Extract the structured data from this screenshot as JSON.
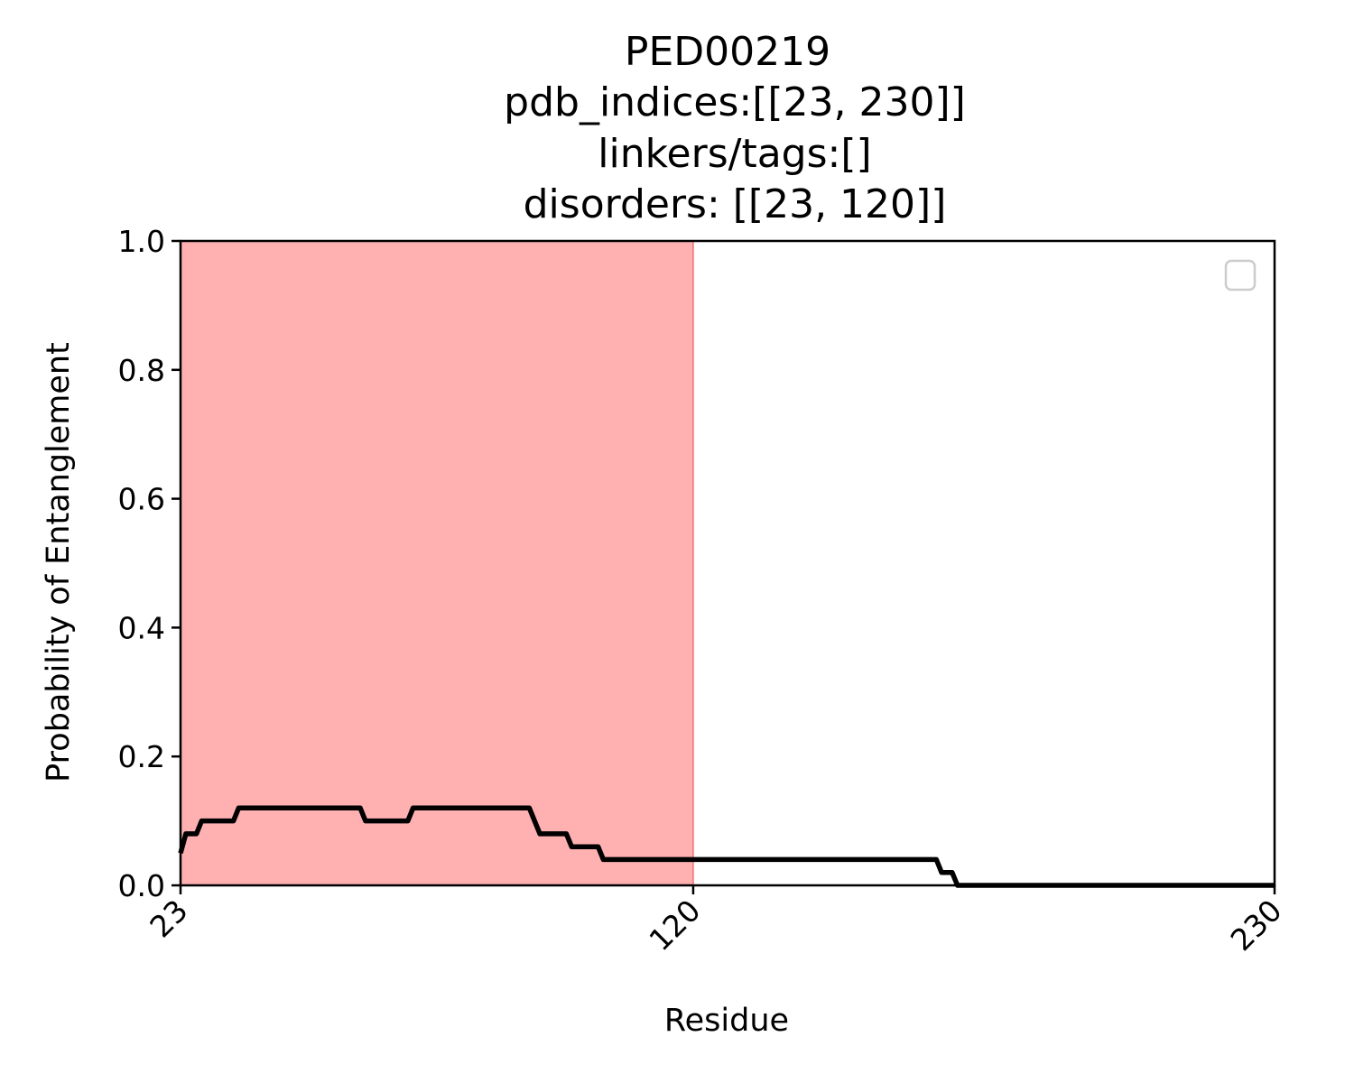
{
  "chart_data": {
    "type": "line",
    "title_lines": [
      "PED00219",
      "pdb_indices:[[23, 230]]",
      "linkers/tags:[]",
      "disorders: [[23, 120]]"
    ],
    "xlabel": "Residue",
    "ylabel": "Probability of Entanglement",
    "xlim": [
      23,
      230
    ],
    "ylim": [
      0,
      1.0
    ],
    "x_ticks": [
      23,
      120,
      230
    ],
    "x_tick_labels": [
      "23",
      "120",
      "230"
    ],
    "y_ticks": [
      0,
      0.2,
      0.4,
      0.6,
      0.8,
      1.0
    ],
    "y_tick_labels": [
      "0.0",
      "0.2",
      "0.4",
      "0.6",
      "0.8",
      "1.0"
    ],
    "x_tick_rotation": -45,
    "grid": false,
    "legend": {
      "placement": "upper-right",
      "entries": []
    },
    "shaded_regions": [
      {
        "x_start": 23,
        "x_end": 120,
        "color": "#ffb1b2",
        "edge_color": "#f07070"
      }
    ],
    "series": [
      {
        "color": "#000000",
        "points": [
          [
            23,
            0.05
          ],
          [
            24,
            0.08
          ],
          [
            26,
            0.08
          ],
          [
            27,
            0.1
          ],
          [
            33,
            0.1
          ],
          [
            34,
            0.12
          ],
          [
            57,
            0.12
          ],
          [
            58,
            0.1
          ],
          [
            66,
            0.1
          ],
          [
            67,
            0.12
          ],
          [
            89,
            0.12
          ],
          [
            91,
            0.08
          ],
          [
            96,
            0.08
          ],
          [
            97,
            0.06
          ],
          [
            102,
            0.06
          ],
          [
            103,
            0.04
          ],
          [
            166,
            0.04
          ],
          [
            167,
            0.02
          ],
          [
            169,
            0.02
          ],
          [
            170,
            0.0
          ],
          [
            230,
            0.0
          ]
        ]
      }
    ]
  }
}
